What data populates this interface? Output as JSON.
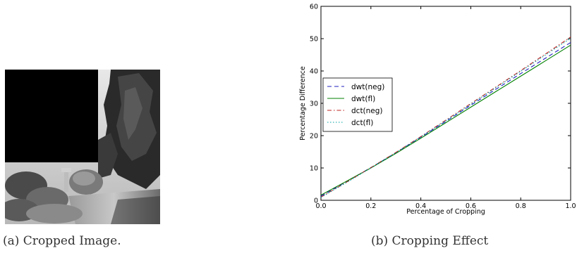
{
  "captions": {
    "a": "(a) Cropped Image.",
    "b": "(b) Cropping Effect"
  },
  "photo": {
    "content": "grayscale garden photo with top-left block cropped to black",
    "crop_fraction": 0.36
  },
  "chart_data": {
    "type": "line",
    "title": "",
    "xlabel": "Percentage of Cropping",
    "ylabel": "Percentage Difference",
    "xlim": [
      0.0,
      1.0
    ],
    "ylim": [
      0,
      60
    ],
    "xticks": [
      "0.0",
      "0.2",
      "0.4",
      "0.6",
      "0.8",
      "1.0"
    ],
    "yticks": [
      "0",
      "10",
      "20",
      "30",
      "40",
      "50",
      "60"
    ],
    "grid": false,
    "legend_position": "center-left",
    "x": [
      0.0,
      0.1,
      0.2,
      0.3,
      0.4,
      0.5,
      0.6,
      0.7,
      0.8,
      0.9,
      1.0
    ],
    "series": [
      {
        "name": "dwt(neg)",
        "color": "#1f1fbf",
        "dash": "dashed",
        "values": [
          1.3,
          5.7,
          10.1,
          14.7,
          19.5,
          24.4,
          29.4,
          34.3,
          39.2,
          44.0,
          48.8
        ]
      },
      {
        "name": "dwt(fl)",
        "color": "#008000",
        "dash": "solid",
        "values": [
          1.6,
          5.8,
          10.0,
          14.5,
          19.2,
          24.0,
          28.8,
          33.6,
          38.4,
          43.2,
          48.0
        ]
      },
      {
        "name": "dct(neg)",
        "color": "#bf1f1f",
        "dash": "dashdot",
        "values": [
          1.0,
          5.5,
          10.1,
          14.8,
          19.7,
          24.8,
          29.9,
          35.0,
          40.1,
          45.3,
          50.5
        ]
      },
      {
        "name": "dct(fl)",
        "color": "#00a0a0",
        "dash": "dotted",
        "values": [
          0.9,
          5.4,
          10.0,
          14.7,
          19.6,
          24.6,
          29.7,
          34.8,
          39.9,
          45.0,
          50.1
        ]
      }
    ]
  }
}
